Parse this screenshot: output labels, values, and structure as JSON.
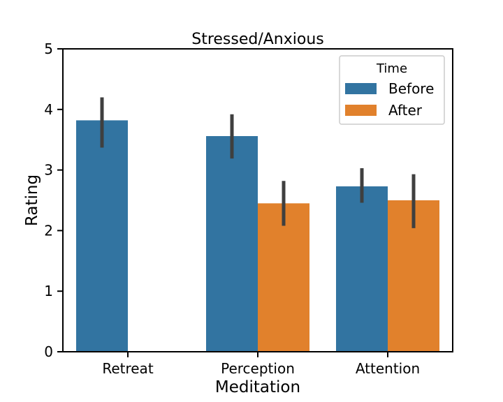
{
  "chart_data": {
    "type": "bar",
    "title": "Stressed/Anxious",
    "xlabel": "Meditation",
    "ylabel": "Rating",
    "ylim": [
      0,
      5
    ],
    "yticks": [
      0,
      1,
      2,
      3,
      4,
      5
    ],
    "categories": [
      "Retreat",
      "Perception",
      "Attention"
    ],
    "legend": {
      "title": "Time",
      "position": "top-right"
    },
    "grid": false,
    "series": [
      {
        "name": "Before",
        "color": "#3274a1",
        "values": [
          3.82,
          3.56,
          2.73
        ],
        "ci_low": [
          3.37,
          3.19,
          2.46
        ],
        "ci_high": [
          4.2,
          3.92,
          3.03
        ]
      },
      {
        "name": "After",
        "color": "#e1812c",
        "values": [
          null,
          2.45,
          2.5
        ],
        "ci_low": [
          null,
          2.08,
          2.04
        ],
        "ci_high": [
          null,
          2.82,
          2.93
        ]
      }
    ],
    "errorbar_color": "#3f3f3f"
  }
}
